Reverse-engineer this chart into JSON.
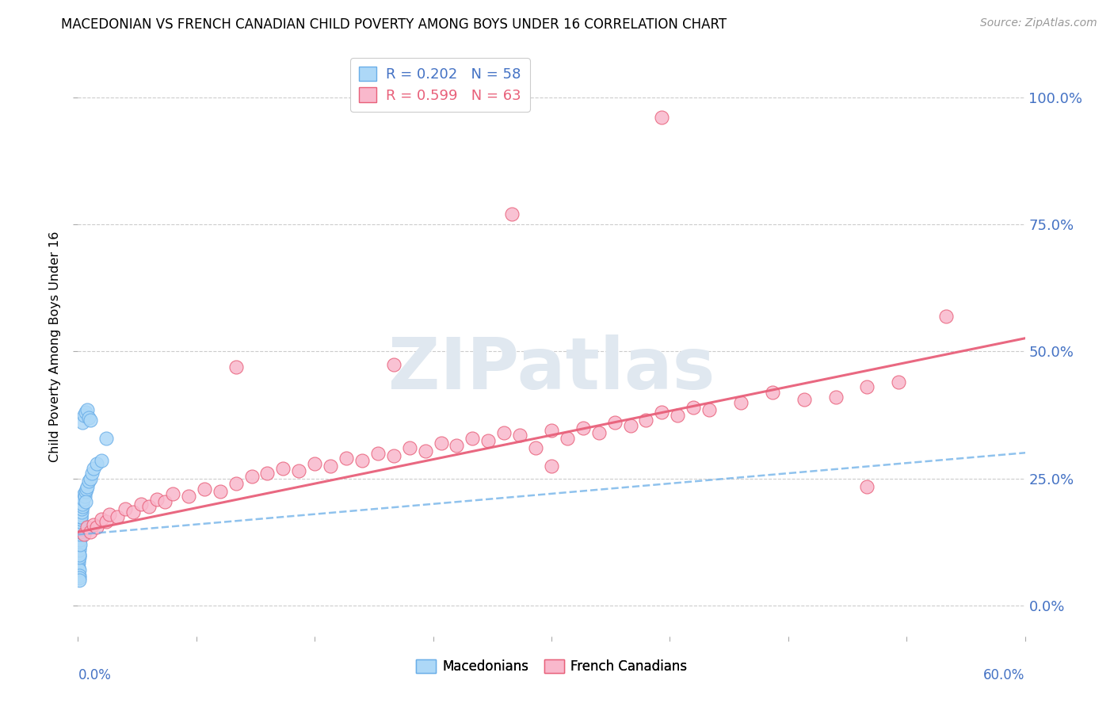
{
  "title": "MACEDONIAN VS FRENCH CANADIAN CHILD POVERTY AMONG BOYS UNDER 16 CORRELATION CHART",
  "source": "Source: ZipAtlas.com",
  "ylabel": "Child Poverty Among Boys Under 16",
  "ytick_values": [
    0,
    25,
    50,
    75,
    100
  ],
  "xlim": [
    0.0,
    60.0
  ],
  "ylim": [
    -6.0,
    108.0
  ],
  "watermark": "ZIPatlas",
  "macedonian_color": "#add8f7",
  "macedonian_edge": "#6aaee8",
  "french_canadian_color": "#f9b8cc",
  "french_canadian_edge": "#e8607a",
  "mac_line_color": "#6aaee8",
  "fc_line_color": "#e8607a",
  "mac_line_intercept": 14.0,
  "mac_line_slope": 0.268,
  "fc_line_intercept": 14.5,
  "fc_line_slope": 0.635,
  "mac_x": [
    0.02,
    0.03,
    0.04,
    0.04,
    0.05,
    0.05,
    0.06,
    0.06,
    0.07,
    0.07,
    0.08,
    0.08,
    0.08,
    0.09,
    0.09,
    0.1,
    0.1,
    0.1,
    0.1,
    0.1,
    0.11,
    0.11,
    0.11,
    0.12,
    0.12,
    0.13,
    0.13,
    0.14,
    0.14,
    0.15,
    0.16,
    0.17,
    0.18,
    0.2,
    0.22,
    0.25,
    0.28,
    0.3,
    0.35,
    0.4,
    0.45,
    0.5,
    0.55,
    0.6,
    0.7,
    0.8,
    0.9,
    1.0,
    1.2,
    1.5,
    0.3,
    0.4,
    0.5,
    1.8,
    0.6,
    0.7,
    0.8,
    0.5
  ],
  "mac_y": [
    12.0,
    11.0,
    10.5,
    9.0,
    8.5,
    7.5,
    7.0,
    6.0,
    5.5,
    5.0,
    13.0,
    12.5,
    11.5,
    10.0,
    9.5,
    14.5,
    13.5,
    12.0,
    11.0,
    10.0,
    14.0,
    13.0,
    12.0,
    15.0,
    14.0,
    15.5,
    14.5,
    16.0,
    15.0,
    16.5,
    17.0,
    17.5,
    18.0,
    17.5,
    18.5,
    19.0,
    19.5,
    20.0,
    21.0,
    22.0,
    21.5,
    22.5,
    23.0,
    23.5,
    24.5,
    25.0,
    26.0,
    27.0,
    28.0,
    28.5,
    36.0,
    37.5,
    38.0,
    33.0,
    38.5,
    37.0,
    36.5,
    20.5
  ],
  "fc_x": [
    0.4,
    0.6,
    0.8,
    1.0,
    1.2,
    1.5,
    1.8,
    2.0,
    2.5,
    3.0,
    3.5,
    4.0,
    4.5,
    5.0,
    5.5,
    6.0,
    7.0,
    8.0,
    9.0,
    10.0,
    11.0,
    12.0,
    13.0,
    14.0,
    15.0,
    16.0,
    17.0,
    18.0,
    19.0,
    20.0,
    21.0,
    22.0,
    23.0,
    24.0,
    25.0,
    26.0,
    27.0,
    28.0,
    29.0,
    30.0,
    31.0,
    32.0,
    33.0,
    34.0,
    35.0,
    36.0,
    37.0,
    38.0,
    39.0,
    40.0,
    42.0,
    44.0,
    46.0,
    48.0,
    50.0,
    52.0,
    55.0,
    10.0,
    20.0,
    30.0,
    37.0,
    27.5,
    50.0
  ],
  "fc_y": [
    14.0,
    15.5,
    14.5,
    16.0,
    15.5,
    17.0,
    16.5,
    18.0,
    17.5,
    19.0,
    18.5,
    20.0,
    19.5,
    21.0,
    20.5,
    22.0,
    21.5,
    23.0,
    22.5,
    24.0,
    25.5,
    26.0,
    27.0,
    26.5,
    28.0,
    27.5,
    29.0,
    28.5,
    30.0,
    29.5,
    31.0,
    30.5,
    32.0,
    31.5,
    33.0,
    32.5,
    34.0,
    33.5,
    31.0,
    34.5,
    33.0,
    35.0,
    34.0,
    36.0,
    35.5,
    36.5,
    38.0,
    37.5,
    39.0,
    38.5,
    40.0,
    42.0,
    40.5,
    41.0,
    43.0,
    44.0,
    57.0,
    47.0,
    47.5,
    27.5,
    96.0,
    77.0,
    23.5
  ]
}
